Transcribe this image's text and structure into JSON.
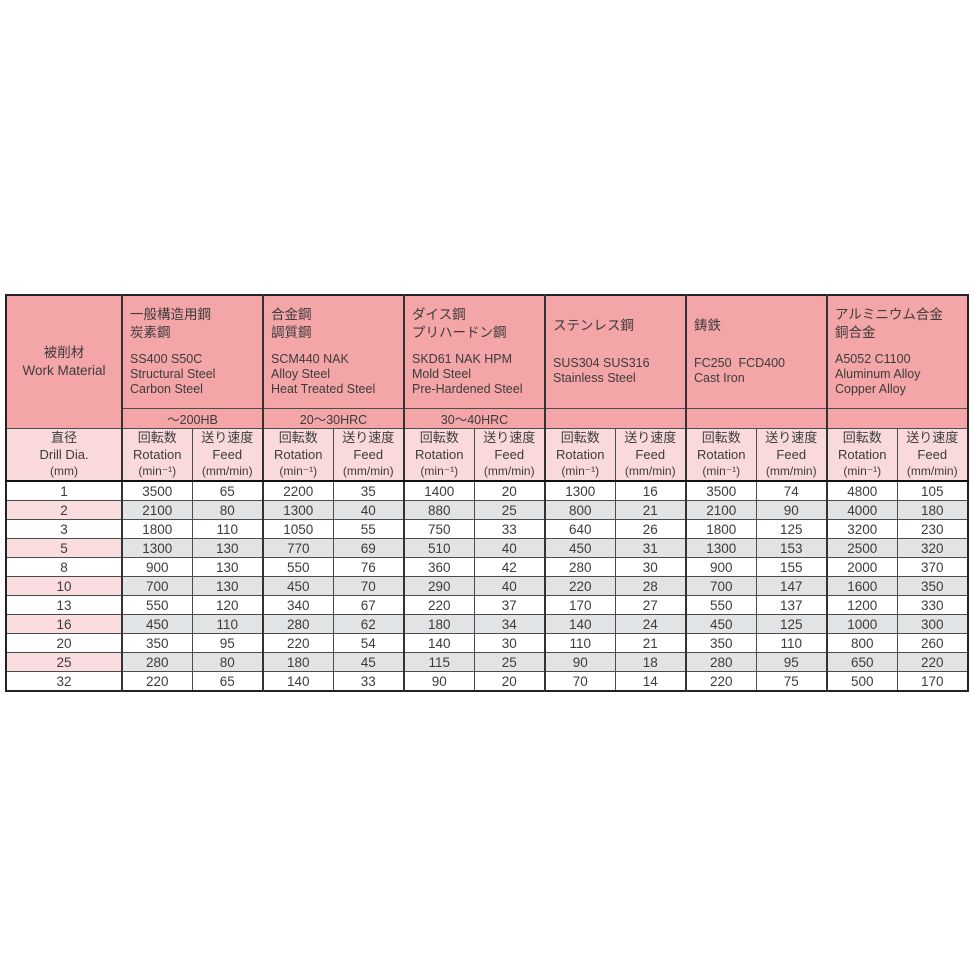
{
  "colors": {
    "header_bg": "#f4a5a7",
    "subheader_bg": "#fad9da",
    "row_shaded_gray": "#e2e3e5",
    "row_shaded_pink": "#fbdcdf",
    "border_dark": "#333333",
    "page_bg": "#ffffff"
  },
  "table": {
    "corner": {
      "title_ja": "被削材",
      "title_en": "Work Material"
    },
    "materials": [
      {
        "name_ja": [
          "一般構造用鋼",
          "炭素鋼"
        ],
        "name_en": [
          "SS400 S50C",
          "Structural Steel",
          "Carbon Steel"
        ],
        "hardness": "～200HB"
      },
      {
        "name_ja": [
          "合金鋼",
          "調質鋼"
        ],
        "name_en": [
          "SCM440 NAK",
          "Alloy Steel",
          "Heat Treated Steel"
        ],
        "hardness": "20～30HRC"
      },
      {
        "name_ja": [
          "ダイス鋼",
          "プリハードン鋼"
        ],
        "name_en": [
          "SKD61 NAK HPM",
          "Mold Steel",
          "Pre-Hardened Steel"
        ],
        "hardness": "30～40HRC"
      },
      {
        "name_ja": [
          "ステンレス鋼"
        ],
        "name_en": [
          "SUS304 SUS316",
          "Stainless Steel"
        ],
        "hardness": ""
      },
      {
        "name_ja": [
          "鋳鉄"
        ],
        "name_en": [
          "FC250  FCD400",
          "Cast Iron"
        ],
        "hardness": ""
      },
      {
        "name_ja": [
          "アルミニウム合金",
          "銅合金"
        ],
        "name_en": [
          "A5052 C1100",
          "Aluminum Alloy",
          "Copper Alloy"
        ],
        "hardness": ""
      }
    ],
    "dia_header": {
      "ja": "直径",
      "en": "Drill Dia.",
      "unit": "(mm)"
    },
    "pair_headers": {
      "rotation": {
        "ja": "回転数",
        "en": "Rotation",
        "unit": "(min⁻¹)"
      },
      "feed": {
        "ja": "送り速度",
        "en": "Feed",
        "unit": "(mm/min)"
      }
    },
    "rows": [
      {
        "dia": "1",
        "values": [
          "3500",
          "65",
          "2200",
          "35",
          "1400",
          "20",
          "1300",
          "16",
          "3500",
          "74",
          "4800",
          "105"
        ]
      },
      {
        "dia": "2",
        "values": [
          "2100",
          "80",
          "1300",
          "40",
          "880",
          "25",
          "800",
          "21",
          "2100",
          "90",
          "4000",
          "180"
        ]
      },
      {
        "dia": "3",
        "values": [
          "1800",
          "110",
          "1050",
          "55",
          "750",
          "33",
          "640",
          "26",
          "1800",
          "125",
          "3200",
          "230"
        ]
      },
      {
        "dia": "5",
        "values": [
          "1300",
          "130",
          "770",
          "69",
          "510",
          "40",
          "450",
          "31",
          "1300",
          "153",
          "2500",
          "320"
        ]
      },
      {
        "dia": "8",
        "values": [
          "900",
          "130",
          "550",
          "76",
          "360",
          "42",
          "280",
          "30",
          "900",
          "155",
          "2000",
          "370"
        ]
      },
      {
        "dia": "10",
        "values": [
          "700",
          "130",
          "450",
          "70",
          "290",
          "40",
          "220",
          "28",
          "700",
          "147",
          "1600",
          "350"
        ]
      },
      {
        "dia": "13",
        "values": [
          "550",
          "120",
          "340",
          "67",
          "220",
          "37",
          "170",
          "27",
          "550",
          "137",
          "1200",
          "330"
        ]
      },
      {
        "dia": "16",
        "values": [
          "450",
          "110",
          "280",
          "62",
          "180",
          "34",
          "140",
          "24",
          "450",
          "125",
          "1000",
          "300"
        ]
      },
      {
        "dia": "20",
        "values": [
          "350",
          "95",
          "220",
          "54",
          "140",
          "30",
          "110",
          "21",
          "350",
          "110",
          "800",
          "260"
        ]
      },
      {
        "dia": "25",
        "values": [
          "280",
          "80",
          "180",
          "45",
          "115",
          "25",
          "90",
          "18",
          "280",
          "95",
          "650",
          "220"
        ]
      },
      {
        "dia": "32",
        "values": [
          "220",
          "65",
          "140",
          "33",
          "90",
          "20",
          "70",
          "14",
          "220",
          "75",
          "500",
          "170"
        ]
      }
    ]
  }
}
